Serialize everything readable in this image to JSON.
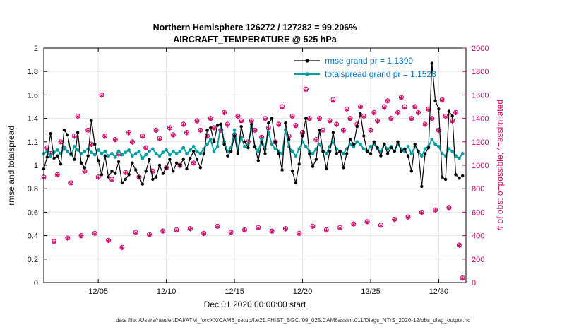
{
  "figure": {
    "title_line1": "Northern Hemisphere 126272 / 127282 = 99.206%",
    "title_line2": "AIRCRAFT_TEMPERATURE @ 525 hPa",
    "xlabel": "Dec.01,2020 00:00:00 start",
    "ylabel_left": "rmse and totalspread",
    "ylabel_right": "# of obs: o=possible; *=assimilated",
    "footer": "data file: /Users/raeder/DAI/ATM_forcXX/CAM6_setup/f.e21.FHIST_BGC.f09_025.CAM6assim.011/Diags_NTrS_2020-12/obs_diag_output.nc"
  },
  "legend": {
    "rmse_label": "rmse grand pr = 1.1399",
    "spread_label": "totalspread grand pr = 1.1523"
  },
  "colors": {
    "rmse": "#000000",
    "spread": "#00a0a0",
    "obs": "#cc0066",
    "legend_text": "#0072bd",
    "grid": "#e5e5e5",
    "axis": "#000000",
    "tick_text": "#111111"
  },
  "chart_data": {
    "type": "line",
    "title": "Northern Hemisphere 126272 / 127282 = 99.206% | AIRCRAFT_TEMPERATURE @ 525 hPa",
    "x_axis": {
      "label": "Dec.01,2020 00:00:00 start",
      "range_days": [
        0,
        31
      ],
      "tick_days": [
        4,
        9,
        14,
        19,
        24,
        29
      ],
      "tick_labels": [
        "12/05",
        "12/10",
        "12/15",
        "12/20",
        "12/25",
        "12/30"
      ]
    },
    "y_left": {
      "label": "rmse and totalspread",
      "range": [
        0,
        2
      ],
      "ticks": [
        0,
        0.2,
        0.4,
        0.6,
        0.8,
        1,
        1.2,
        1.4,
        1.6,
        1.8,
        2
      ],
      "tick_labels": [
        "0",
        "0.2",
        "0.4",
        "0.6",
        "0.8",
        "1",
        "1.2",
        "1.4",
        "1.6",
        "1.8",
        "2"
      ]
    },
    "y_right": {
      "label": "# of obs: o=possible; *=assimilated",
      "range": [
        0,
        2000
      ],
      "ticks": [
        0,
        200,
        400,
        600,
        800,
        1000,
        1200,
        1400,
        1600,
        1800,
        2000
      ],
      "tick_labels": [
        "0",
        "200",
        "400",
        "600",
        "800",
        "1000",
        "1200",
        "1400",
        "1600",
        "1800",
        "2000"
      ]
    },
    "x_step_days": 0.25,
    "grid": true,
    "legend_position": "upper-center-right",
    "series": [
      {
        "name": "rmse",
        "grand_mean": 1.1399,
        "axis": "left",
        "style": "line-dot",
        "color_key": "rmse",
        "values": [
          0.97,
          1.07,
          1.27,
          1.06,
          1.08,
          1.01,
          1.3,
          1.26,
          1.1,
          1.05,
          1.28,
          1.02,
          0.98,
          1.08,
          1.38,
          1.18,
          1.04,
          0.92,
          1.08,
          0.9,
          0.95,
          0.93,
          1.03,
          0.85,
          0.88,
          0.92,
          1.02,
          0.96,
          0.9,
          0.84,
          0.95,
          1.05,
          0.88,
          0.9,
          1.0,
          0.93,
          0.98,
          1.05,
          0.95,
          1.02,
          1.0,
          1.05,
          0.97,
          1.06,
          1.12,
          1.05,
          0.98,
          1.1,
          1.3,
          1.32,
          1.2,
          1.34,
          1.35,
          1.18,
          1.08,
          1.12,
          1.25,
          1.1,
          1.33,
          1.2,
          1.15,
          1.35,
          1.16,
          1.04,
          1.2,
          1.1,
          1.36,
          1.4,
          1.2,
          1.1,
          0.96,
          1.36,
          1.22,
          0.95,
          0.85,
          1.01,
          1.25,
          1.4,
          1.1,
          0.99,
          1.05,
          1.3,
          1.12,
          0.97,
          1.12,
          1.28,
          1.1,
          1.12,
          0.98,
          1.1,
          1.22,
          1.18,
          1.33,
          1.44,
          1.25,
          1.12,
          1.1,
          1.2,
          1.15,
          1.08,
          1.18,
          1.1,
          1.15,
          1.12,
          1.2,
          1.12,
          1.14,
          1.08,
          0.95,
          1.18,
          1.12,
          0.82,
          1.1,
          1.15,
          1.87,
          1.55,
          1.48,
          0.9,
          0.88,
          1.46,
          1.42,
          0.92,
          0.89,
          0.91
        ]
      },
      {
        "name": "totalspread",
        "grand_mean": 1.1523,
        "axis": "left",
        "style": "line-dot",
        "color_key": "spread",
        "values": [
          1.1,
          1.12,
          1.08,
          1.11,
          1.13,
          1.1,
          1.15,
          1.12,
          1.09,
          1.16,
          1.13,
          1.1,
          1.12,
          1.14,
          1.11,
          1.09,
          1.13,
          1.1,
          1.12,
          1.08,
          1.1,
          1.07,
          1.12,
          1.09,
          1.11,
          1.13,
          1.08,
          1.1,
          1.12,
          1.06,
          1.09,
          1.12,
          1.14,
          1.1,
          1.08,
          1.11,
          1.13,
          1.09,
          1.12,
          1.1,
          1.12,
          1.15,
          1.1,
          1.13,
          1.16,
          1.12,
          1.1,
          1.14,
          1.18,
          1.22,
          1.12,
          1.16,
          1.35,
          1.2,
          1.12,
          1.15,
          1.3,
          1.14,
          1.24,
          1.16,
          1.18,
          1.32,
          1.16,
          1.12,
          1.22,
          1.14,
          1.28,
          1.18,
          1.14,
          1.12,
          1.1,
          1.3,
          1.16,
          1.12,
          1.08,
          1.14,
          1.2,
          1.16,
          1.12,
          1.1,
          1.14,
          1.18,
          1.12,
          1.1,
          1.16,
          1.2,
          1.14,
          1.12,
          1.1,
          1.14,
          1.18,
          1.16,
          1.2,
          1.18,
          1.14,
          1.12,
          1.16,
          1.18,
          1.14,
          1.12,
          1.18,
          1.14,
          1.16,
          1.12,
          1.18,
          1.14,
          1.12,
          1.16,
          1.1,
          1.16,
          1.12,
          1.08,
          1.14,
          1.16,
          1.22,
          1.18,
          1.16,
          1.1,
          1.08,
          1.14,
          1.12,
          1.08,
          1.06,
          1.1
        ]
      },
      {
        "name": "possible_obs",
        "axis": "right",
        "style": "circle-marker",
        "color_key": "obs",
        "values": [
          900,
          1150,
          1100,
          350,
          920,
          1200,
          1150,
          380,
          850,
          1250,
          1420,
          400,
          950,
          1300,
          1180,
          420,
          900,
          1600,
          1250,
          360,
          880,
          1220,
          1100,
          300,
          940,
          1280,
          1200,
          430,
          900,
          1250,
          1150,
          410,
          950,
          1300,
          1230,
          440,
          980,
          1320,
          1260,
          450,
          1000,
          1350,
          1280,
          460,
          1020,
          1380,
          1300,
          420,
          1250,
          1400,
          1320,
          480,
          1300,
          1450,
          1350,
          430,
          1260,
          1420,
          1380,
          450,
          1200,
          1380,
          1300,
          470,
          1240,
          1400,
          1320,
          440,
          1200,
          1350,
          1500,
          460,
          1250,
          1420,
          1340,
          420,
          1280,
          1650,
          1400,
          480,
          1220,
          1400,
          1300,
          450,
          1380,
          1560,
          1350,
          470,
          1300,
          1480,
          1400,
          500,
          1350,
          1500,
          1420,
          520,
          1300,
          1450,
          1380,
          490,
          1500,
          1550,
          1400,
          540,
          1450,
          1580,
          1500,
          560,
          1400,
          1500,
          1450,
          600,
          1350,
          1480,
          1400,
          620,
          1300,
          1560,
          1420,
          640,
          1380,
          1450,
          320,
          40
        ]
      },
      {
        "name": "assimilated_obs",
        "axis": "right",
        "style": "asterisk-marker",
        "color_key": "obs",
        "values": [
          890,
          1145,
          1095,
          345,
          915,
          1195,
          1140,
          375,
          845,
          1245,
          1415,
          395,
          945,
          1295,
          1175,
          415,
          895,
          1595,
          1245,
          355,
          875,
          1215,
          1090,
          295,
          935,
          1275,
          1195,
          425,
          895,
          1245,
          1145,
          405,
          945,
          1295,
          1225,
          435,
          975,
          1315,
          1255,
          445,
          995,
          1345,
          1275,
          455,
          1015,
          1375,
          1295,
          415,
          1245,
          1395,
          1315,
          475,
          1295,
          1445,
          1340,
          425,
          1255,
          1415,
          1375,
          445,
          1195,
          1375,
          1295,
          465,
          1235,
          1395,
          1315,
          435,
          1195,
          1345,
          1490,
          455,
          1245,
          1415,
          1335,
          415,
          1275,
          1640,
          1395,
          475,
          1215,
          1395,
          1295,
          445,
          1375,
          1550,
          1345,
          465,
          1295,
          1475,
          1395,
          495,
          1345,
          1495,
          1415,
          515,
          1295,
          1445,
          1375,
          485,
          1490,
          1545,
          1395,
          535,
          1445,
          1575,
          1490,
          555,
          1395,
          1495,
          1445,
          595,
          1345,
          1475,
          1395,
          615,
          1295,
          1555,
          1415,
          635,
          1375,
          1445,
          315,
          35
        ]
      }
    ]
  }
}
